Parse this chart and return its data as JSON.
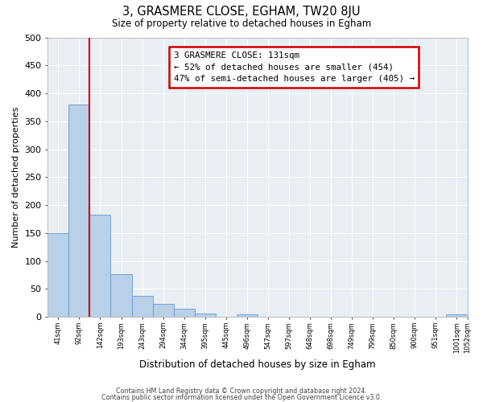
{
  "title": "3, GRASMERE CLOSE, EGHAM, TW20 8JU",
  "subtitle": "Size of property relative to detached houses in Egham",
  "xlabel": "Distribution of detached houses by size in Egham",
  "ylabel": "Number of detached properties",
  "bar_values": [
    150,
    380,
    183,
    77,
    38,
    23,
    14,
    6,
    0,
    5,
    0,
    0,
    0,
    0,
    0,
    0,
    0,
    0,
    0,
    5
  ],
  "bar_labels": [
    "41sqm",
    "92sqm",
    "142sqm",
    "193sqm",
    "243sqm",
    "294sqm",
    "344sqm",
    "395sqm",
    "445sqm",
    "496sqm",
    "547sqm",
    "597sqm",
    "648sqm",
    "698sqm",
    "749sqm",
    "799sqm",
    "850sqm",
    "900sqm",
    "951sqm",
    "1001sqm",
    "1052sqm"
  ],
  "bar_color": "#b8d0e8",
  "bar_edge_color": "#6699cc",
  "red_line_x": 1.5,
  "annotation_title": "3 GRASMERE CLOSE: 131sqm",
  "annotation_line1": "← 52% of detached houses are smaller (454)",
  "annotation_line2": "47% of semi-detached houses are larger (405) →",
  "annotation_box_color": "#ffffff",
  "annotation_box_edge_color": "#cc0000",
  "ylim": [
    0,
    500
  ],
  "yticks": [
    0,
    50,
    100,
    150,
    200,
    250,
    300,
    350,
    400,
    450,
    500
  ],
  "footer1": "Contains HM Land Registry data © Crown copyright and database right 2024.",
  "footer2": "Contains public sector information licensed under the Open Government Licence v3.0.",
  "plot_bg_color": "#e8eef4",
  "grid_color": "#ffffff",
  "fig_background": "#ffffff"
}
